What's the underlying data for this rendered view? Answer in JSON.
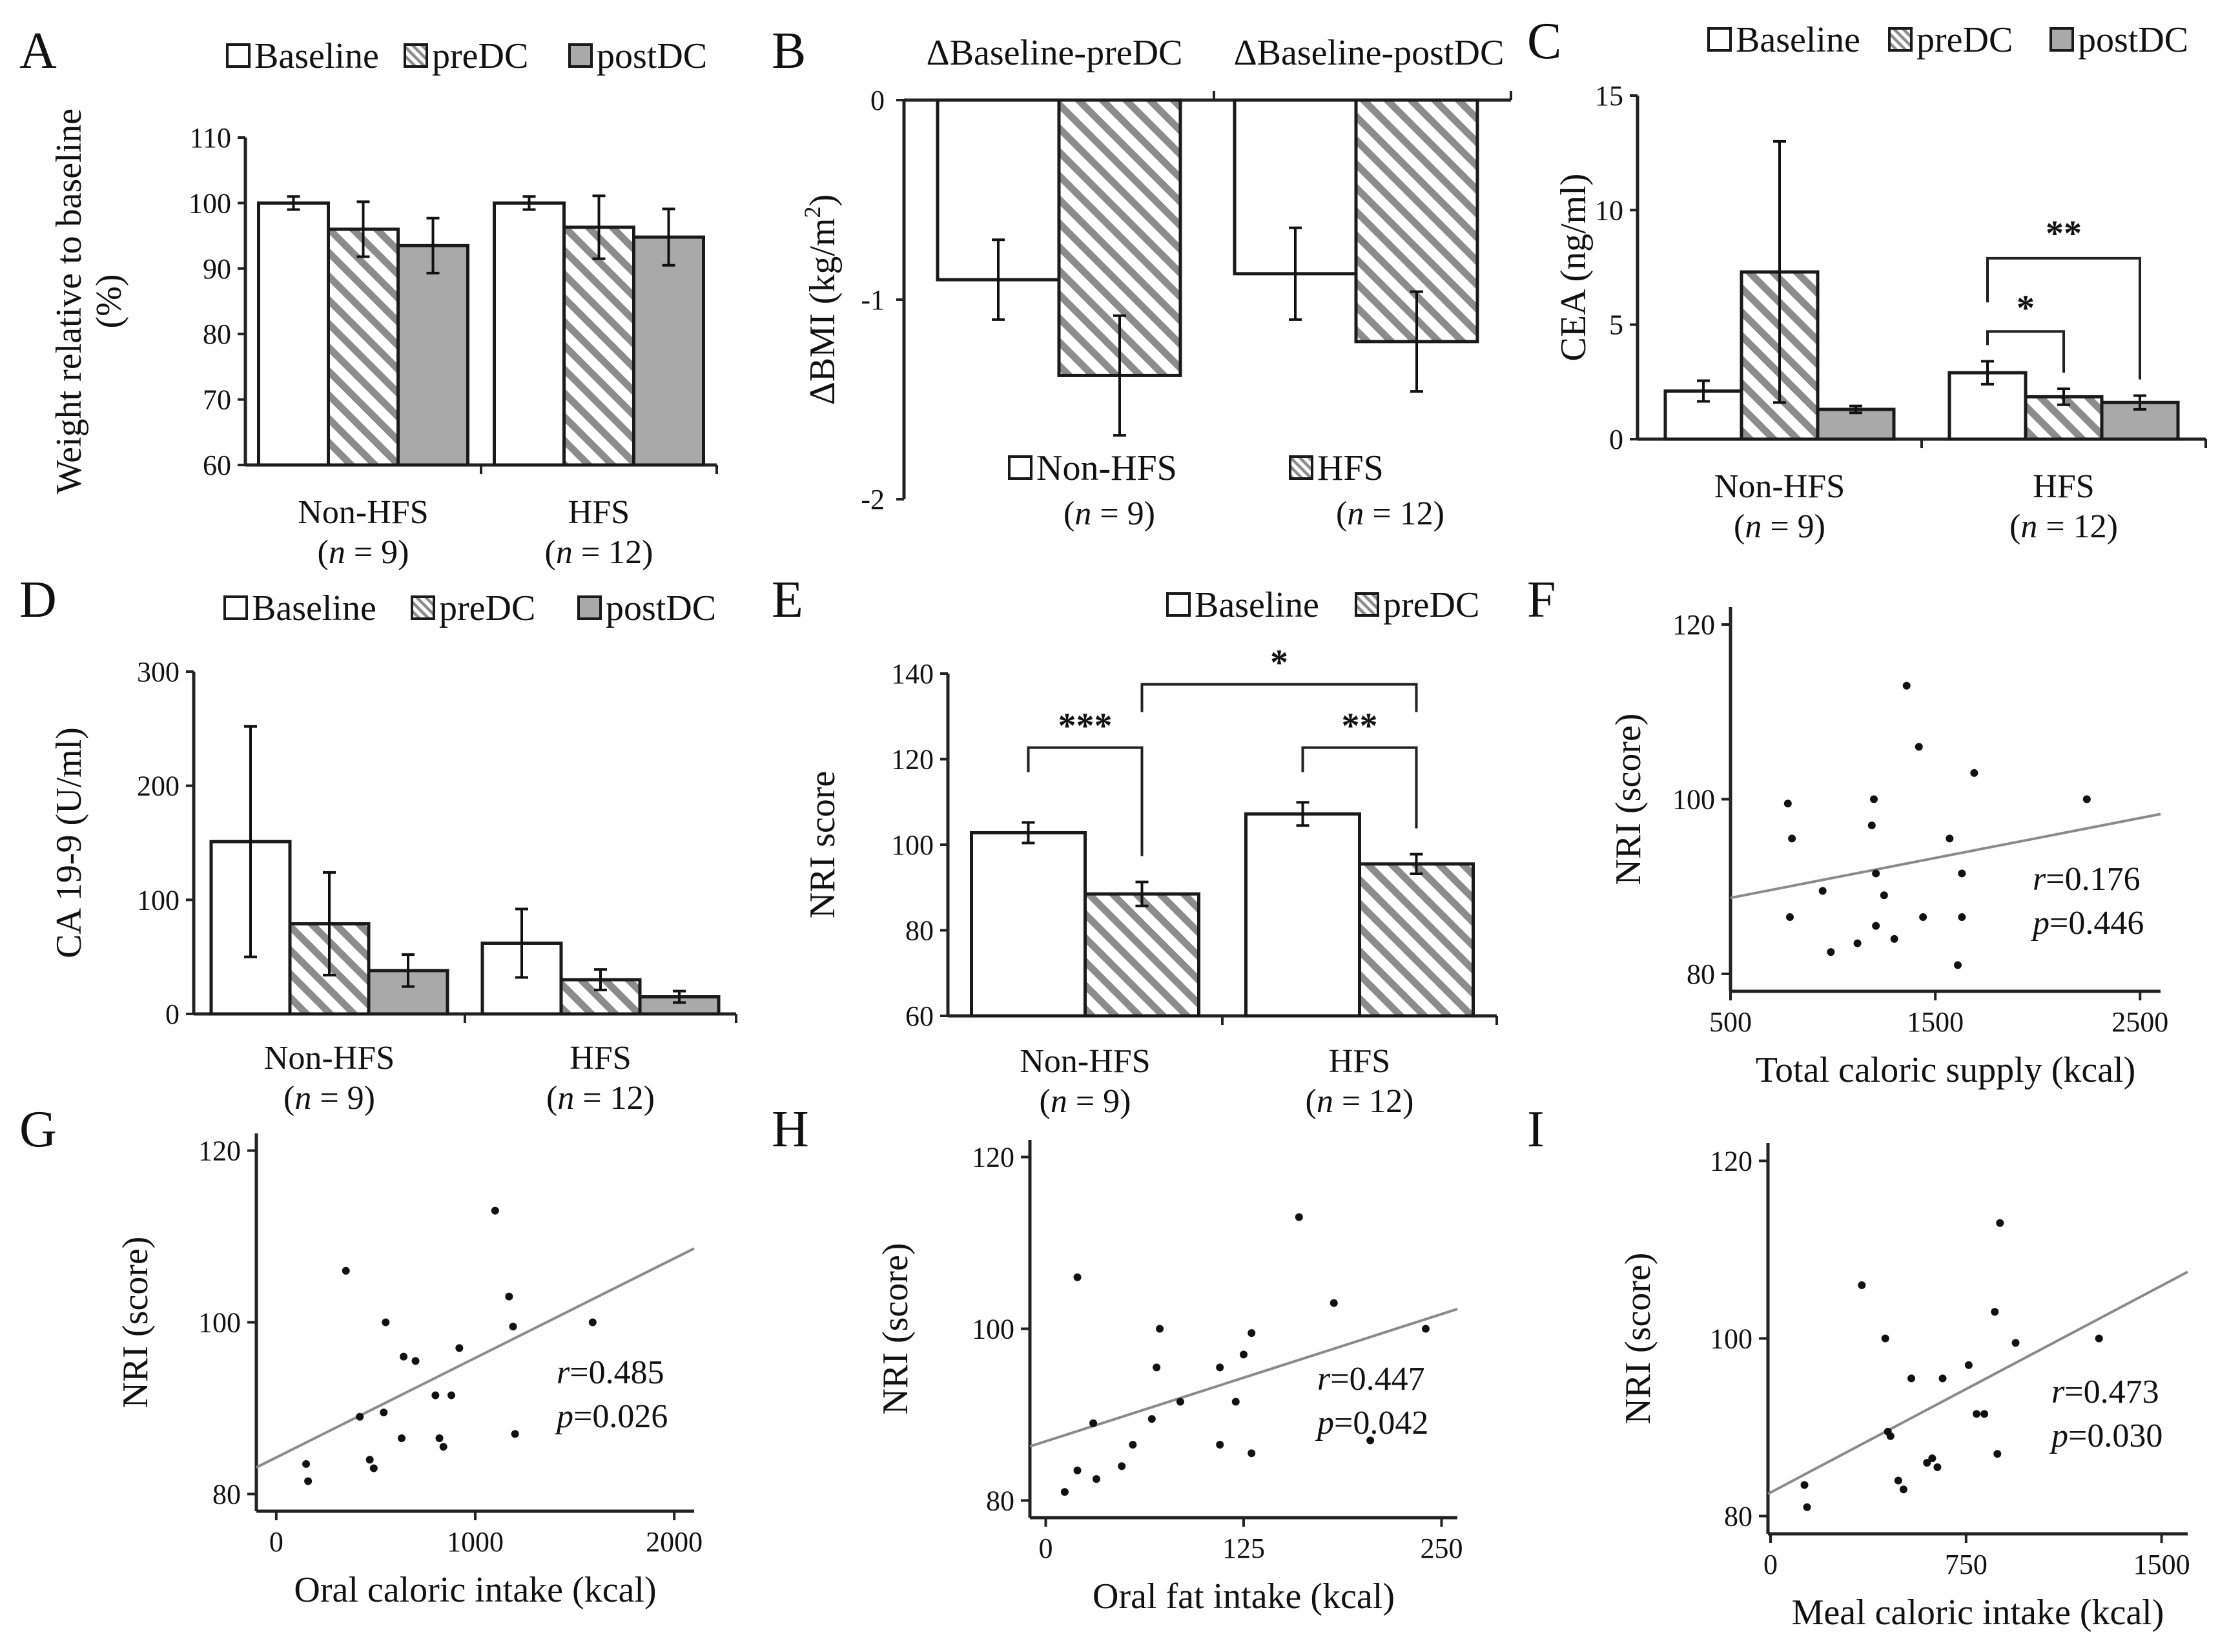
{
  "colors": {
    "baseline": "#ffffff",
    "postdc": "#a9a9a9",
    "hatch": "#8c8c8c",
    "regression": "#8a8a8a",
    "axis": "#222222"
  },
  "chart_data": [
    {
      "id": "A",
      "type": "bar",
      "label": "A",
      "ylabel": "Weight relative to baseline (%)",
      "ylabel_lines": [
        "Weight relative to baseline",
        "(%)"
      ],
      "ylim": [
        60,
        110
      ],
      "yticks": [
        60,
        70,
        80,
        90,
        100,
        110
      ],
      "legend": [
        "Baseline",
        "preDC",
        "postDC"
      ],
      "categories": [
        "Non-HFS",
        "HFS"
      ],
      "cat_n": [
        "(n = 9)",
        "(n = 12)"
      ],
      "series": [
        {
          "name": "Baseline",
          "values": [
            100,
            100
          ],
          "errors": [
            1,
            1
          ]
        },
        {
          "name": "preDC",
          "values": [
            96,
            96.3
          ],
          "errors": [
            4.2,
            4.8
          ]
        },
        {
          "name": "postDC",
          "values": [
            93.5,
            94.8
          ],
          "errors": [
            4.2,
            4.3
          ]
        }
      ]
    },
    {
      "id": "B",
      "type": "bar",
      "label": "B",
      "ylabel": "ΔBMI (kg/m2)",
      "ylim": [
        -2,
        0
      ],
      "yticks": [
        -2,
        -1,
        0
      ],
      "group_titles": [
        "ΔBaseline-preDC",
        "ΔBaseline-postDC"
      ],
      "legend": [
        "Non-HFS",
        "HFS"
      ],
      "legend_n": [
        "(n = 9)",
        "(n = 12)"
      ],
      "series": [
        {
          "name": "Non-HFS",
          "values": [
            -0.9,
            -0.87
          ],
          "errors": [
            0.2,
            0.23
          ]
        },
        {
          "name": "HFS",
          "values": [
            -1.38,
            -1.21
          ],
          "errors": [
            0.3,
            0.25
          ]
        }
      ]
    },
    {
      "id": "C",
      "type": "bar",
      "label": "C",
      "ylabel": "CEA (ng/ml)",
      "ylim": [
        0,
        15
      ],
      "yticks": [
        0,
        5,
        10,
        15
      ],
      "legend": [
        "Baseline",
        "preDC",
        "postDC"
      ],
      "categories": [
        "Non-HFS",
        "HFS"
      ],
      "cat_n": [
        "(n = 9)",
        "(n = 12)"
      ],
      "series": [
        {
          "name": "Baseline",
          "values": [
            2.1,
            2.9
          ],
          "errors": [
            0.45,
            0.5
          ]
        },
        {
          "name": "preDC",
          "values": [
            7.3,
            1.85
          ],
          "errors": [
            5.7,
            0.35
          ]
        },
        {
          "name": "postDC",
          "values": [
            1.3,
            1.6
          ],
          "errors": [
            0.15,
            0.3
          ]
        }
      ],
      "annotations": [
        "*",
        "**"
      ]
    },
    {
      "id": "D",
      "type": "bar",
      "label": "D",
      "ylabel": "CA 19-9 (U/ml)",
      "ylim": [
        0,
        300
      ],
      "yticks": [
        0,
        100,
        200,
        300
      ],
      "legend": [
        "Baseline",
        "preDC",
        "postDC"
      ],
      "categories": [
        "Non-HFS",
        "HFS"
      ],
      "cat_n": [
        "(n = 9)",
        "(n = 12)"
      ],
      "series": [
        {
          "name": "Baseline",
          "values": [
            151,
            62
          ],
          "errors": [
            101,
            30
          ]
        },
        {
          "name": "preDC",
          "values": [
            79,
            30
          ],
          "errors": [
            45,
            9
          ]
        },
        {
          "name": "postDC",
          "values": [
            38,
            15
          ],
          "errors": [
            14,
            5
          ]
        }
      ]
    },
    {
      "id": "E",
      "type": "bar",
      "label": "E",
      "ylabel": "NRI score",
      "ylim": [
        60,
        140
      ],
      "yticks": [
        60,
        80,
        100,
        120,
        140
      ],
      "legend": [
        "Baseline",
        "preDC"
      ],
      "categories": [
        "Non-HFS",
        "HFS"
      ],
      "cat_n": [
        "(n = 9)",
        "(n = 12)"
      ],
      "series": [
        {
          "name": "Baseline",
          "values": [
            102.8,
            107.2
          ],
          "errors": [
            2.4,
            2.7
          ]
        },
        {
          "name": "preDC",
          "values": [
            88.5,
            95.5
          ],
          "errors": [
            2.8,
            2.3
          ]
        }
      ],
      "annotations": [
        "***",
        "**",
        "*"
      ]
    },
    {
      "id": "F",
      "type": "scatter",
      "label": "F",
      "xlabel": "Total caloric supply (kcal)",
      "ylabel": "NRI (score)",
      "xlim": [
        500,
        2600
      ],
      "ylim": [
        78,
        122
      ],
      "xticks": [
        500,
        1500,
        2500
      ],
      "yticks": [
        80,
        100,
        120
      ],
      "r": "r=0.176",
      "p": "p=0.446",
      "regression": [
        [
          500,
          88.7
        ],
        [
          2600,
          98.3
        ]
      ],
      "x": [
        780,
        800,
        790,
        950,
        990,
        1120,
        1190,
        1200,
        1210,
        1210,
        1250,
        1300,
        1360,
        1420,
        1440,
        1570,
        1610,
        1630,
        1630,
        1690,
        2240
      ],
      "y": [
        99.5,
        95.5,
        86.5,
        89.5,
        82.5,
        83.5,
        97,
        100,
        85.5,
        91.5,
        89,
        84,
        113,
        106,
        86.5,
        95.5,
        81,
        86.5,
        91.5,
        103,
        100
      ]
    },
    {
      "id": "G",
      "type": "scatter",
      "label": "G",
      "xlabel": "Oral caloric intake (kcal)",
      "ylabel": "NRI (score)",
      "xlim": [
        -100,
        2100
      ],
      "ylim": [
        78,
        122
      ],
      "xticks": [
        0,
        1000,
        2000
      ],
      "yticks": [
        80,
        100,
        120
      ],
      "r": "r=0.485",
      "p": "p=0.026",
      "regression": [
        [
          -100,
          83.1
        ],
        [
          2100,
          108.6
        ]
      ],
      "x": [
        150,
        160,
        350,
        420,
        470,
        490,
        540,
        550,
        630,
        640,
        700,
        800,
        820,
        840,
        880,
        920,
        1100,
        1170,
        1190,
        1200,
        1590
      ],
      "y": [
        83.5,
        81.5,
        106,
        89,
        84,
        83,
        89.5,
        100,
        86.5,
        96,
        95.5,
        91.5,
        86.5,
        85.5,
        91.5,
        97,
        113,
        103,
        99.5,
        87,
        100
      ]
    },
    {
      "id": "H",
      "type": "scatter",
      "label": "H",
      "xlabel": "Oral fat intake (kcal)",
      "ylabel": "NRI (score)",
      "xlim": [
        -10,
        260
      ],
      "ylim": [
        78,
        122
      ],
      "xticks": [
        0,
        125,
        250
      ],
      "yticks": [
        80,
        100,
        120
      ],
      "r": "r=0.447",
      "p": "p=0.042",
      "regression": [
        [
          -10,
          86.3
        ],
        [
          260,
          102.3
        ]
      ],
      "x": [
        12,
        20,
        20,
        30,
        32,
        48,
        55,
        67,
        70,
        72,
        85,
        110,
        110,
        120,
        125,
        130,
        130,
        160,
        182,
        205,
        240
      ],
      "y": [
        81,
        83.5,
        106,
        89,
        82.5,
        84,
        86.5,
        89.5,
        95.5,
        100,
        91.5,
        95.5,
        86.5,
        91.5,
        97,
        85.5,
        99.5,
        113,
        103,
        87,
        100
      ]
    },
    {
      "id": "I",
      "type": "scatter",
      "label": "I",
      "xlabel": "Meal caloric intake (kcal)",
      "ylabel": "NRI (score)",
      "xlim": [
        -10,
        1600
      ],
      "ylim": [
        78,
        122
      ],
      "xticks": [
        0,
        750,
        1500
      ],
      "yticks": [
        80,
        100,
        120
      ],
      "r": "r=0.473",
      "p": "p=0.030",
      "regression": [
        [
          -10,
          82.5
        ],
        [
          1600,
          107.5
        ]
      ],
      "x": [
        130,
        140,
        350,
        440,
        450,
        460,
        490,
        510,
        540,
        600,
        620,
        640,
        660,
        760,
        790,
        820,
        860,
        870,
        880,
        940,
        1260
      ],
      "y": [
        83.5,
        81,
        106,
        100,
        89.5,
        89,
        84,
        83,
        95.5,
        86,
        86.5,
        85.5,
        95.5,
        97,
        91.5,
        91.5,
        103,
        87,
        113,
        99.5,
        100
      ]
    }
  ]
}
